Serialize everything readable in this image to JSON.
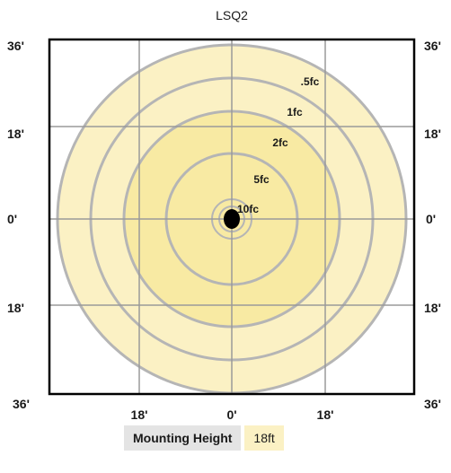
{
  "title": "LSQ2",
  "y_axis": {
    "left_labels": [
      "36'",
      "18'",
      "0'",
      "18'",
      "36'"
    ],
    "right_labels": [
      "36'",
      "18'",
      "0'",
      "18'",
      "36'"
    ]
  },
  "x_axis": {
    "labels": [
      "18'",
      "0'",
      "18'"
    ]
  },
  "contours": [
    {
      "label": ".5fc",
      "fill": "#fbf1c4"
    },
    {
      "label": "1fc",
      "fill": "#fbf1c4"
    },
    {
      "label": "2fc",
      "fill": "#f8eaa3"
    },
    {
      "label": "5fc",
      "fill": "#f8eaa3"
    },
    {
      "label": "10fc",
      "fill": "#f8eaa3"
    }
  ],
  "colors": {
    "contour_line": "#b5b5b5",
    "grid_line": "#9a9a9a",
    "frame": "#000000",
    "fixture": "#000000"
  },
  "mounting_height": {
    "label": "Mounting Height",
    "value": "18ft"
  }
}
